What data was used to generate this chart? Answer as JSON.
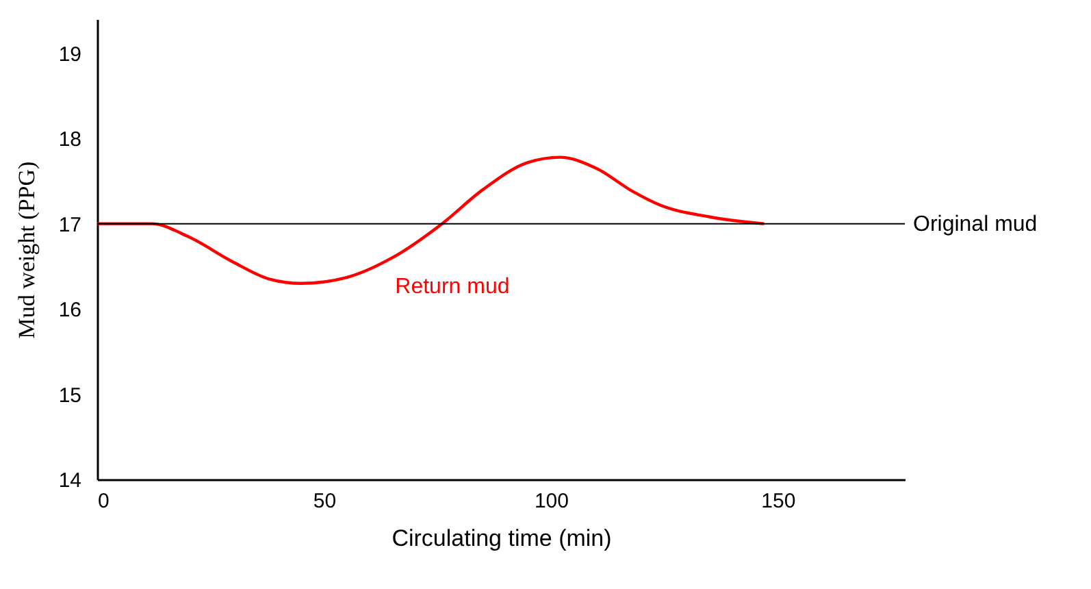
{
  "chart_data": {
    "type": "line",
    "xlabel": "Circulating time (min)",
    "ylabel": "Mud weight (PPG)",
    "x": [
      0,
      12,
      20,
      30,
      38,
      45,
      55,
      65,
      76,
      85,
      95,
      102,
      110,
      118,
      124,
      135,
      147
    ],
    "series": [
      {
        "name": "Return mud",
        "color": "#ff0000",
        "values": [
          17,
          17,
          16.85,
          16.55,
          16.35,
          16.3,
          16.37,
          16.6,
          17.0,
          17.4,
          17.72,
          17.78,
          17.65,
          17.38,
          17.22,
          17.08,
          17.0
        ]
      }
    ],
    "xlim": [
      0,
      178
    ],
    "xticks": [
      0,
      50,
      100,
      150
    ],
    "ylim": [
      14,
      19.4
    ],
    "yticks": [
      14,
      15,
      16,
      17,
      18,
      19
    ],
    "ref_lines": [
      {
        "axis": "y",
        "value": 17,
        "label": "Original mud",
        "color": "#000000"
      }
    ],
    "grid": false,
    "legend": false,
    "marker": "none",
    "line_style": "solid"
  }
}
